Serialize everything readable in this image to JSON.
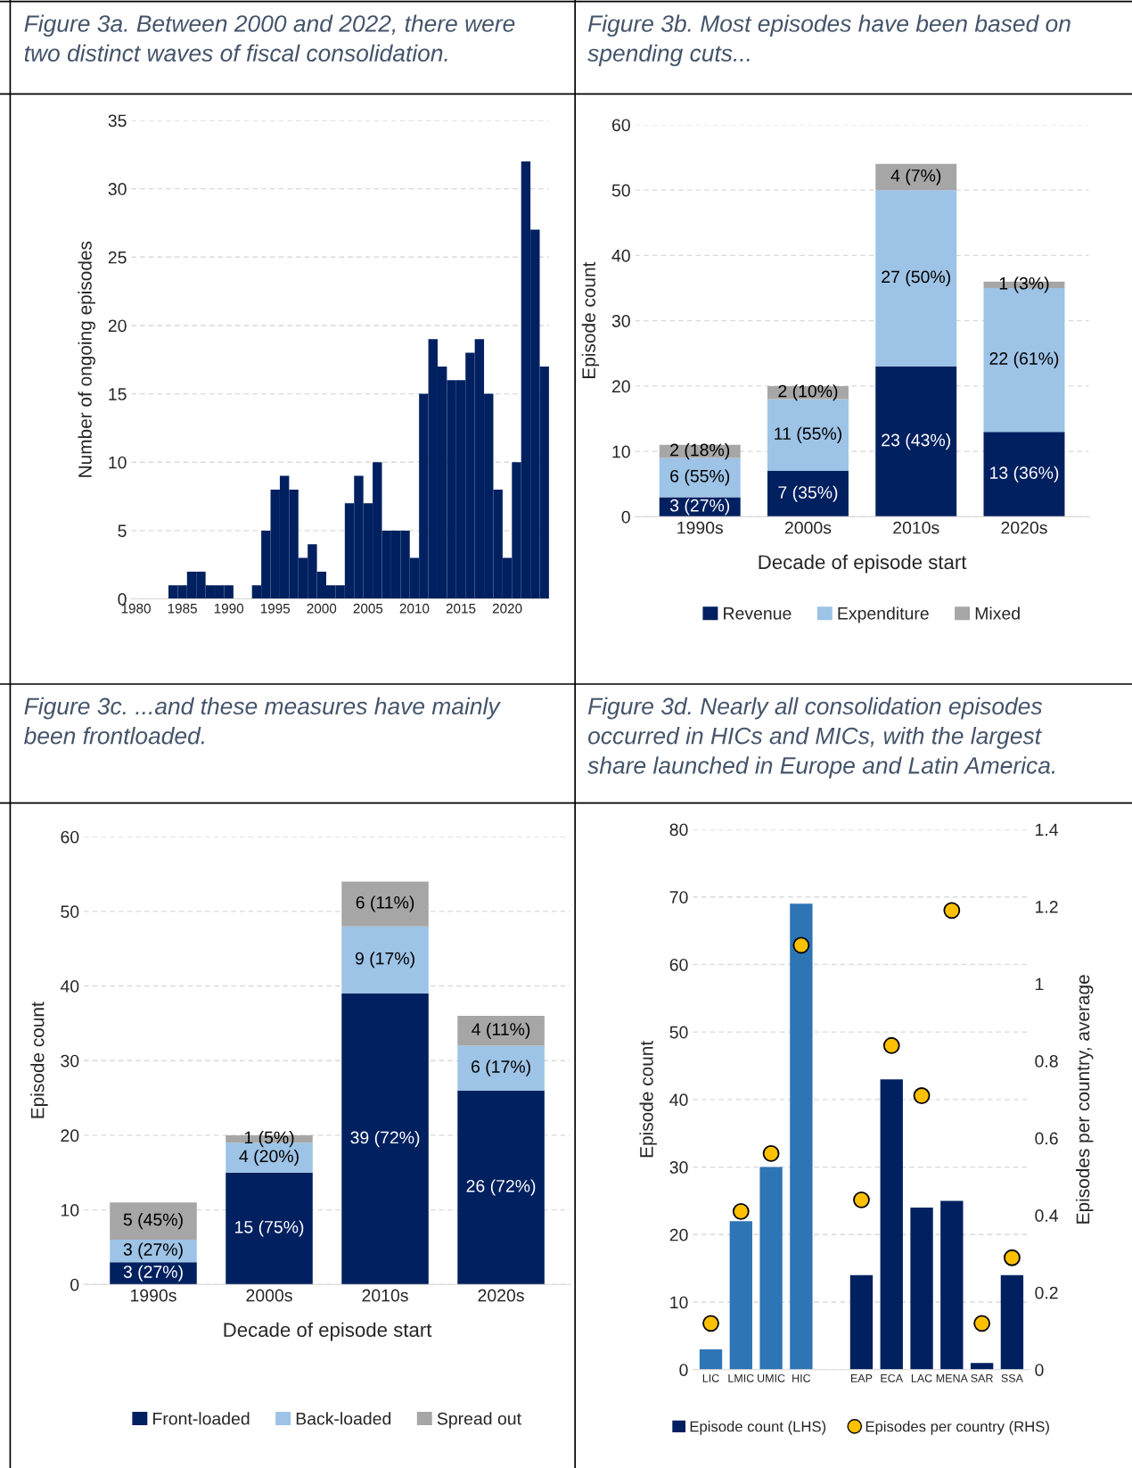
{
  "chart_data": [
    {
      "type": "histogram",
      "title": "Figure 3a. Between 2000 and 2022, there were\ntwo distinct waves of fiscal consolidation.",
      "ylabel": "Number of ongoing episodes",
      "color": "#002060",
      "bins": [
        1983.5,
        1984.5,
        1985.5,
        1986.5,
        1987.5,
        1988.5,
        1989.5,
        1990.5,
        1991.5,
        1992.5,
        1993.5,
        1994.5,
        1995.5,
        1996.5,
        1997.5,
        1998.5,
        1999.5,
        2000.5,
        2001.5,
        2002.5,
        2003.5,
        2004.5,
        2005.5,
        2006.5,
        2007.5,
        2008.5,
        2009.5,
        2010.5,
        2011.5,
        2012.5,
        2013.5,
        2014.5,
        2015.5,
        2016.5,
        2017.5,
        2018.5,
        2019.5,
        2020.5,
        2021.5,
        2022.5,
        2023.5,
        2024.5
      ],
      "values": [
        1,
        1,
        2,
        2,
        1,
        1,
        1,
        0,
        0,
        1,
        5,
        8,
        9,
        8,
        3,
        4,
        2,
        1,
        1,
        7,
        9,
        7,
        10,
        5,
        5,
        5,
        3,
        15,
        19,
        17,
        16,
        16,
        18,
        19,
        15,
        8,
        3,
        10,
        32,
        27,
        17
      ],
      "xlim": [
        1979.5,
        2024.5
      ],
      "xticks": [
        1980,
        1985,
        1990,
        1995,
        2000,
        2005,
        2010,
        2015,
        2020
      ],
      "ylim": [
        0,
        35
      ],
      "yticks": [
        0,
        5,
        10,
        15,
        20,
        25,
        30,
        35
      ],
      "grid": "y"
    },
    {
      "type": "bar",
      "stacked": true,
      "title": "Figure 3b. Most episodes have been based on\nspending cuts...",
      "xlabel": "Decade of episode start",
      "ylabel": "Episode count",
      "categories": [
        "1990s",
        "2000s",
        "2010s",
        "2020s"
      ],
      "series": [
        {
          "name": "Revenue",
          "color": "#002060",
          "values": [
            3,
            7,
            23,
            13
          ],
          "value_labels": [
            "3 (27%)",
            "7 (35%)",
            "23 (43%)",
            "13 (36%)"
          ]
        },
        {
          "name": "Expenditure",
          "color": "#9dc3e6",
          "values": [
            6,
            11,
            27,
            22
          ],
          "value_labels": [
            "6 (55%)",
            "11 (55%)",
            "27 (50%)",
            "22 (61%)"
          ]
        },
        {
          "name": "Mixed",
          "color": "#a6a6a6",
          "values": [
            2,
            2,
            4,
            1
          ],
          "value_labels": [
            "2 (18%)",
            "2 (10%)",
            "4 (7%)",
            "1 (3%)"
          ]
        }
      ],
      "ylim": [
        0,
        60
      ],
      "yticks": [
        0,
        10,
        20,
        30,
        40,
        50,
        60
      ],
      "grid": "y",
      "legend": "bottom"
    },
    {
      "type": "bar",
      "stacked": true,
      "title": "Figure 3c. ...and these measures have mainly\nbeen frontloaded.",
      "xlabel": "Decade of episode start",
      "ylabel": "Episode count",
      "categories": [
        "1990s",
        "2000s",
        "2010s",
        "2020s"
      ],
      "series": [
        {
          "name": "Front-loaded",
          "color": "#002060",
          "values": [
            3,
            15,
            39,
            26
          ],
          "value_labels": [
            "3 (27%)",
            "15 (75%)",
            "39 (72%)",
            "26 (72%)"
          ]
        },
        {
          "name": "Back-loaded",
          "color": "#9dc3e6",
          "values": [
            3,
            4,
            9,
            6
          ],
          "value_labels": [
            "3 (27%)",
            "4 (20%)",
            "9 (17%)",
            "6 (17%)"
          ]
        },
        {
          "name": "Spread out",
          "color": "#a6a6a6",
          "values": [
            5,
            1,
            6,
            4
          ],
          "value_labels": [
            "5 (45%)",
            "1 (5%)",
            "6 (11%)",
            "4 (11%)"
          ]
        }
      ],
      "ylim": [
        0,
        60
      ],
      "yticks": [
        0,
        10,
        20,
        30,
        40,
        50,
        60
      ],
      "grid": "y",
      "legend": "bottom"
    },
    {
      "type": "bar",
      "title": "Figure 3d. Nearly all consolidation episodes\noccurred in HICs and MICs, with the largest\nshare launched in Europe and Latin America.",
      "ylabel": "Episode count",
      "y2label": "Episodes per country, average",
      "categories": [
        "LIC",
        "LMIC",
        "UMIC",
        "HIC",
        null,
        "EAP",
        "ECA",
        "LAC",
        "MENA",
        "SAR",
        "SSA"
      ],
      "series": [
        {
          "name": "Episode count (LHS)",
          "type": "bar",
          "color": "#002060",
          "colors": [
            "#2e75b6",
            "#2e75b6",
            "#2e75b6",
            "#2e75b6",
            "#002060",
            "#002060",
            "#002060",
            "#002060",
            "#002060",
            "#002060",
            "#002060"
          ],
          "values": [
            3,
            22,
            30,
            69,
            null,
            14,
            43,
            24,
            25,
            1,
            14
          ]
        },
        {
          "name": "Episodes per country (RHS)",
          "type": "scatter",
          "axis": "y2",
          "marker": "circle",
          "color": "#ffc000",
          "values": [
            0.12,
            0.41,
            0.56,
            1.1,
            null,
            0.44,
            0.84,
            0.71,
            1.19,
            0.12,
            0.29
          ]
        }
      ],
      "ylim": [
        0,
        80
      ],
      "yticks": [
        0,
        10,
        20,
        30,
        40,
        50,
        60,
        70,
        80
      ],
      "y2lim": [
        0,
        1.4
      ],
      "y2ticks": [
        0,
        0.2,
        0.4,
        0.6,
        0.8,
        1,
        1.2,
        1.4
      ],
      "grid": "y",
      "legend": "bottom"
    }
  ]
}
